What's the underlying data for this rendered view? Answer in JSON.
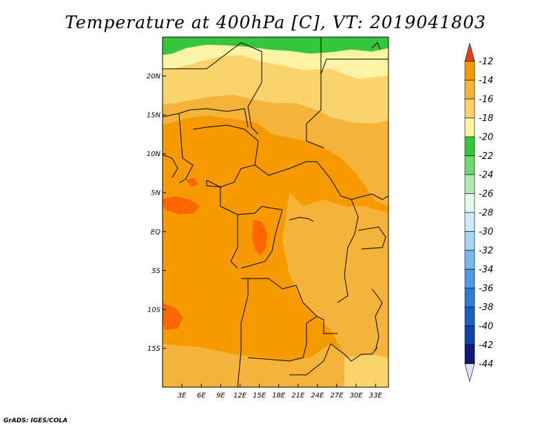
{
  "title": "Temperature at 400hPa [C], VT: 2019041803",
  "credit": "GrADS: IGES/COLA",
  "map": {
    "lon_range": [
      0,
      35
    ],
    "lat_range": [
      -20,
      25
    ],
    "lat_ticks": [
      {
        "value": 20,
        "label": "20N"
      },
      {
        "value": 15,
        "label": "15N"
      },
      {
        "value": 10,
        "label": "10N"
      },
      {
        "value": 5,
        "label": "5N"
      },
      {
        "value": 0,
        "label": "EQ"
      },
      {
        "value": -5,
        "label": "5S"
      },
      {
        "value": -10,
        "label": "10S"
      },
      {
        "value": -15,
        "label": "15S"
      }
    ],
    "lon_ticks": [
      {
        "value": 3,
        "label": "3E"
      },
      {
        "value": 6,
        "label": "6E"
      },
      {
        "value": 9,
        "label": "9E"
      },
      {
        "value": 12,
        "label": "12E"
      },
      {
        "value": 15,
        "label": "15E"
      },
      {
        "value": 18,
        "label": "18E"
      },
      {
        "value": 21,
        "label": "21E"
      },
      {
        "value": 24,
        "label": "24E"
      },
      {
        "value": 27,
        "label": "27E"
      },
      {
        "value": 30,
        "label": "30E"
      },
      {
        "value": 33,
        "label": "33E"
      }
    ]
  },
  "colorbar": {
    "levels": [
      "-12",
      "-14",
      "-16",
      "-18",
      "-20",
      "-22",
      "-24",
      "-26",
      "-28",
      "-30",
      "-32",
      "-34",
      "-36",
      "-38",
      "-40",
      "-42",
      "-44"
    ],
    "colors": [
      "#ff6600",
      "#f59a00",
      "#f5b33a",
      "#fbd36b",
      "#fef2a6",
      "#36c63e",
      "#6ed973",
      "#b0ecb0",
      "#e4f8ec",
      "#ccebfa",
      "#a6d6f6",
      "#78b8ee",
      "#4e9ae6",
      "#2e7cd6",
      "#1c5fc3",
      "#1142ab",
      "#0c1a78"
    ],
    "over_color": "#ee3a1a",
    "under_color": "#e0e0ff"
  },
  "field_colors": {
    "t_-13": "#ff6600",
    "t_-15": "#f59a00",
    "t_-17": "#f5b33a",
    "t_-19": "#fbd36b",
    "t_-21": "#fef2a6",
    "t_-23": "#36c63e"
  }
}
